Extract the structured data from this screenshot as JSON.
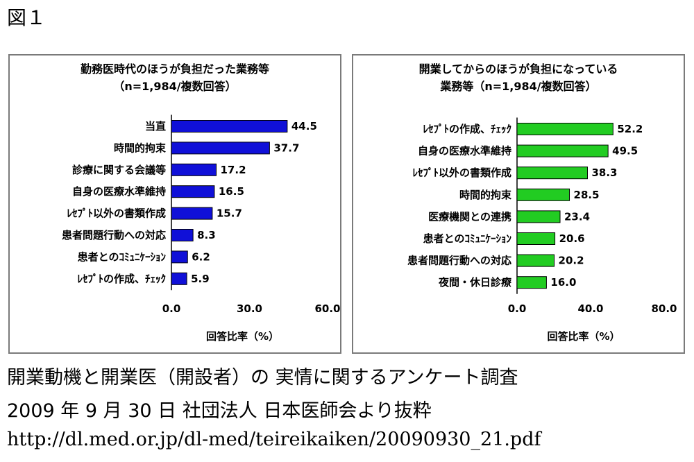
{
  "figure_label": "図１",
  "chart_data": [
    {
      "type": "bar",
      "orientation": "horizontal",
      "title_lines": [
        "勤務医時代のほうが負担だった業務等",
        "（n=1,984/複数回答）"
      ],
      "categories": [
        "当直",
        "時間的拘束",
        "診療に関する会議等",
        "自身の医療水準維持",
        "ﾚｾﾌﾟﾄ以外の書類作成",
        "患者問題行動への対応",
        "患者とのｺﾐｭﾆｹｰｼｮﾝ",
        "ﾚｾﾌﾟﾄの作成、ﾁｪｯｸ"
      ],
      "values": [
        44.5,
        37.7,
        17.2,
        16.5,
        15.7,
        8.3,
        6.2,
        5.9
      ],
      "value_labels": [
        "44.5",
        "37.7",
        "17.2",
        "16.5",
        "15.7",
        "8.3",
        "6.2",
        "5.9"
      ],
      "xlim": [
        0,
        60
      ],
      "xticks": [
        "0.0",
        "30.0",
        "60.0"
      ],
      "xlabel": "回答比率（%）",
      "bar_color": "#1010d8",
      "grid": false
    },
    {
      "type": "bar",
      "orientation": "horizontal",
      "title_lines": [
        "開業してからのほうが負担になっている",
        "業務等（n=1,984/複数回答）"
      ],
      "categories": [
        "ﾚｾﾌﾟﾄの作成、ﾁｪｯｸ",
        "自身の医療水準維持",
        "ﾚｾﾌﾟﾄ以外の書類作成",
        "時間的拘束",
        "医療機関との連携",
        "患者とのｺﾐｭﾆｹｰｼｮﾝ",
        "患者問題行動への対応",
        "夜間・休日診療"
      ],
      "values": [
        52.2,
        49.5,
        38.3,
        28.5,
        23.4,
        20.6,
        20.2,
        16.0
      ],
      "value_labels": [
        "52.2",
        "49.5",
        "38.3",
        "28.5",
        "23.4",
        "20.6",
        "20.2",
        "16.0"
      ],
      "xlim": [
        0,
        80
      ],
      "xticks": [
        "0.0",
        "40.0",
        "80.0"
      ],
      "xlabel": "回答比率（%）",
      "bar_color": "#22cc22",
      "grid": false
    }
  ],
  "footer": {
    "line1": "開業動機と開業医（開設者）の 実情に関するアンケート調査",
    "line2": "2009 年 9 月 30 日 社団法人 日本医師会より抜粋",
    "line3": "http://dl.med.or.jp/dl-med/teireikaiken/20090930_21.pdf"
  }
}
